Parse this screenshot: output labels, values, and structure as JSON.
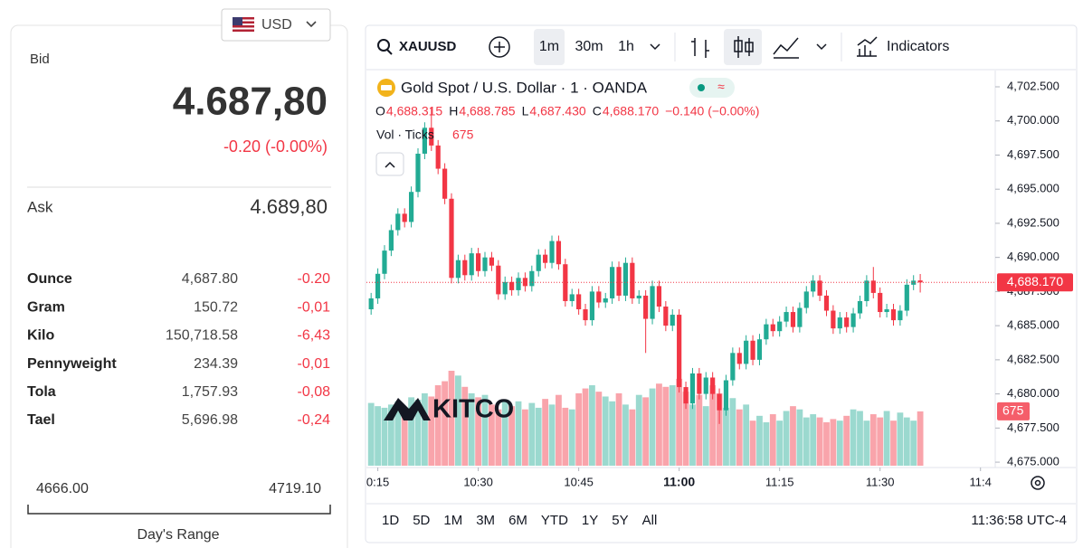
{
  "quote_panel": {
    "currency": "USD",
    "bid_label": "Bid",
    "bid": "4.687,80",
    "bid_change": "-0.20 (-0.00%)",
    "ask_label": "Ask",
    "ask": "4.689,80",
    "rows": [
      [
        "Ounce",
        "4,687.80",
        "-0.20"
      ],
      [
        "Gram",
        "150.72",
        "-0,01"
      ],
      [
        "Kilo",
        "150,718.58",
        "-6,43"
      ],
      [
        "Pennyweight",
        "234.39",
        "-0,01"
      ],
      [
        "Tola",
        "1,757.93",
        "-0,08"
      ],
      [
        "Tael",
        "5,696.98",
        "-0,24"
      ]
    ],
    "range_low": "4666.00",
    "range_high": "4719.10",
    "range_label": "Day's Range"
  },
  "toolbar": {
    "symbol": "XAUUSD",
    "intervals": [
      "1m",
      "30m",
      "1h"
    ],
    "indicators": "Indicators"
  },
  "chart_data": {
    "type": "candlestick",
    "title": "Gold Spot / U.S. Dollar · 1 · OANDA",
    "ohlc_legend": [
      {
        "key": "O",
        "text": "4,688.315"
      },
      {
        "key": "H",
        "text": "4,688.785"
      },
      {
        "key": "L",
        "text": "4,687.430"
      },
      {
        "key": "C",
        "text": "4,688.170"
      }
    ],
    "change": "−0.140 (−0.00%)",
    "volume_label": "Vol · Ticks",
    "watermark": "KITCO",
    "up_color": "#22ab94",
    "down_color": "#f23645",
    "open": [
      4686.2,
      4687.0,
      4688.8,
      4690.5,
      4692.0,
      4693.2,
      4692.6,
      4694.8,
      4697.6,
      4699.5,
      4698.2,
      4696.5,
      4694.3,
      4688.5,
      4689.8,
      4688.7,
      4690.3,
      4689.0,
      4690.0,
      4689.4,
      4687.3,
      4688.2,
      4687.6,
      4688.5,
      4687.9,
      4689.0,
      4690.2,
      4689.6,
      4691.2,
      4689.5,
      4686.8,
      4687.3,
      4686.2,
      4685.4,
      4687.5,
      4686.7,
      4687.0,
      4689.3,
      4687.2,
      4689.6,
      4687.0,
      4687.2,
      4685.5,
      4687.9,
      4686.4,
      4685.0,
      4685.8,
      4680.5,
      4679.3,
      4681.5,
      4680.0,
      4681.2,
      4680.0,
      4678.8,
      4681.0,
      4683.0,
      4682.2,
      4683.9,
      4682.5,
      4684.0,
      4685.1,
      4684.6,
      4685.3,
      4686.0,
      4684.9,
      4686.3,
      4687.5,
      4688.3,
      4687.2,
      4686.1,
      4684.8,
      4685.6,
      4684.9,
      4685.9,
      4686.8,
      4688.3,
      4687.4,
      4686.0,
      4686.2,
      4685.4,
      4686.1,
      4688.0,
      4688.315
    ],
    "high": [
      4687.4,
      4689.2,
      4690.9,
      4692.4,
      4693.6,
      4693.6,
      4695.2,
      4698.0,
      4699.9,
      4701.0,
      4698.6,
      4696.9,
      4694.7,
      4690.2,
      4690.2,
      4690.7,
      4690.7,
      4690.4,
      4690.4,
      4689.8,
      4688.6,
      4688.6,
      4688.9,
      4688.9,
      4689.4,
      4690.6,
      4690.6,
      4691.6,
      4691.6,
      4689.9,
      4687.7,
      4687.7,
      4686.6,
      4687.9,
      4687.9,
      4687.4,
      4689.7,
      4689.7,
      4690.0,
      4690.0,
      4687.6,
      4687.6,
      4688.3,
      4688.3,
      4686.8,
      4686.2,
      4686.2,
      4680.9,
      4681.9,
      4681.9,
      4681.6,
      4681.6,
      4680.4,
      4681.4,
      4683.4,
      4683.4,
      4684.3,
      4684.3,
      4684.4,
      4685.5,
      4685.5,
      4685.7,
      4686.4,
      4686.4,
      4686.7,
      4687.9,
      4688.7,
      4688.7,
      4687.6,
      4686.5,
      4686.0,
      4686.0,
      4686.3,
      4687.2,
      4688.7,
      4689.3,
      4687.8,
      4686.6,
      4686.6,
      4686.5,
      4688.4,
      4688.7,
      4688.785
    ],
    "low": [
      4685.8,
      4686.6,
      4688.4,
      4690.1,
      4691.6,
      4692.2,
      4692.2,
      4694.4,
      4697.2,
      4697.8,
      4696.1,
      4693.9,
      4688.1,
      4688.1,
      4688.3,
      4688.3,
      4688.6,
      4688.6,
      4689.0,
      4686.9,
      4686.9,
      4687.2,
      4687.2,
      4687.5,
      4687.5,
      4688.6,
      4689.2,
      4689.2,
      4689.1,
      4686.4,
      4686.4,
      4685.8,
      4685.0,
      4685.0,
      4686.3,
      4686.3,
      4686.6,
      4686.8,
      4686.8,
      4686.6,
      4686.6,
      4683.0,
      4685.1,
      4686.0,
      4684.6,
      4684.6,
      4680.1,
      4678.9,
      4678.9,
      4679.6,
      4679.6,
      4679.6,
      4677.8,
      4678.4,
      4680.6,
      4681.8,
      4681.8,
      4682.1,
      4682.1,
      4683.6,
      4684.2,
      4684.2,
      4684.9,
      4684.5,
      4684.5,
      4685.9,
      4687.1,
      4686.8,
      4685.7,
      4684.4,
      4684.4,
      4684.5,
      4684.5,
      4685.5,
      4686.4,
      4687.0,
      4685.6,
      4685.6,
      4685.0,
      4685.0,
      4685.7,
      4687.6,
      4687.43
    ],
    "close": [
      4687.0,
      4688.8,
      4690.5,
      4692.0,
      4693.2,
      4692.6,
      4694.8,
      4697.6,
      4699.5,
      4698.2,
      4696.5,
      4694.3,
      4688.5,
      4689.8,
      4688.7,
      4690.3,
      4689.0,
      4690.0,
      4689.4,
      4687.3,
      4688.2,
      4687.6,
      4688.5,
      4687.9,
      4689.0,
      4690.2,
      4689.6,
      4691.2,
      4689.5,
      4686.8,
      4687.3,
      4686.2,
      4685.4,
      4687.5,
      4686.7,
      4687.0,
      4689.3,
      4687.2,
      4689.6,
      4687.0,
      4687.2,
      4685.5,
      4687.9,
      4686.4,
      4685.0,
      4685.8,
      4680.5,
      4679.3,
      4681.5,
      4680.0,
      4681.2,
      4680.0,
      4678.8,
      4681.0,
      4683.0,
      4682.2,
      4683.9,
      4682.5,
      4684.0,
      4685.1,
      4684.6,
      4685.3,
      4686.0,
      4684.9,
      4686.3,
      4687.5,
      4688.3,
      4687.2,
      4686.1,
      4684.8,
      4685.6,
      4684.9,
      4685.9,
      4686.8,
      4688.3,
      4687.4,
      4686.0,
      4686.2,
      4685.4,
      4686.1,
      4688.0,
      4688.3,
      4688.17
    ],
    "volume": [
      780,
      740,
      720,
      760,
      800,
      700,
      850,
      820,
      900,
      860,
      1000,
      1050,
      1180,
      1120,
      980,
      900,
      850,
      880,
      760,
      700,
      820,
      740,
      800,
      700,
      780,
      720,
      830,
      760,
      880,
      720,
      700,
      900,
      960,
      1000,
      920,
      860,
      800,
      900,
      760,
      700,
      880,
      850,
      960,
      1020,
      980,
      1000,
      1080,
      920,
      760,
      880,
      740,
      1000,
      900,
      720,
      840,
      700,
      760,
      560,
      620,
      540,
      640,
      560,
      680,
      740,
      700,
      600,
      640,
      600,
      540,
      580,
      560,
      620,
      700,
      680,
      560,
      640,
      600,
      680,
      560,
      660,
      600,
      560,
      675
    ],
    "xlim": [
      -0.7,
      93.2
    ],
    "xticks": [
      {
        "value": 1,
        "label": "0:15"
      },
      {
        "value": 16,
        "label": "10:30"
      },
      {
        "value": 31,
        "label": "10:45"
      },
      {
        "value": 46,
        "label": "11:00"
      },
      {
        "value": 61,
        "label": "11:15"
      },
      {
        "value": 76,
        "label": "11:30"
      },
      {
        "value": 91,
        "label": "11:4"
      }
    ],
    "ylim": [
      4674.74,
      4703.56
    ],
    "yticks": [
      {
        "value": 4675,
        "label": "4,675.000"
      },
      {
        "value": 4677.5,
        "label": "4,677.500"
      },
      {
        "value": 4680,
        "label": "4,680.000"
      },
      {
        "value": 4682.5,
        "label": "4,682.500"
      },
      {
        "value": 4685,
        "label": "4,685.000"
      },
      {
        "value": 4687.5,
        "label": "4,687.500"
      },
      {
        "value": 4690,
        "label": "4,690.000"
      },
      {
        "value": 4692.5,
        "label": "4,692.500"
      },
      {
        "value": 4695,
        "label": "4,695.000"
      },
      {
        "value": 4697.5,
        "label": "4,697.500"
      },
      {
        "value": 4700,
        "label": "4,700.000"
      },
      {
        "value": 4702.5,
        "label": "4,702.500"
      }
    ]
  },
  "range_bar": {
    "ranges": [
      "1D",
      "5D",
      "1M",
      "3M",
      "6M",
      "YTD",
      "1Y",
      "5Y",
      "All"
    ],
    "clock": "11:36:58 UTC-4"
  }
}
